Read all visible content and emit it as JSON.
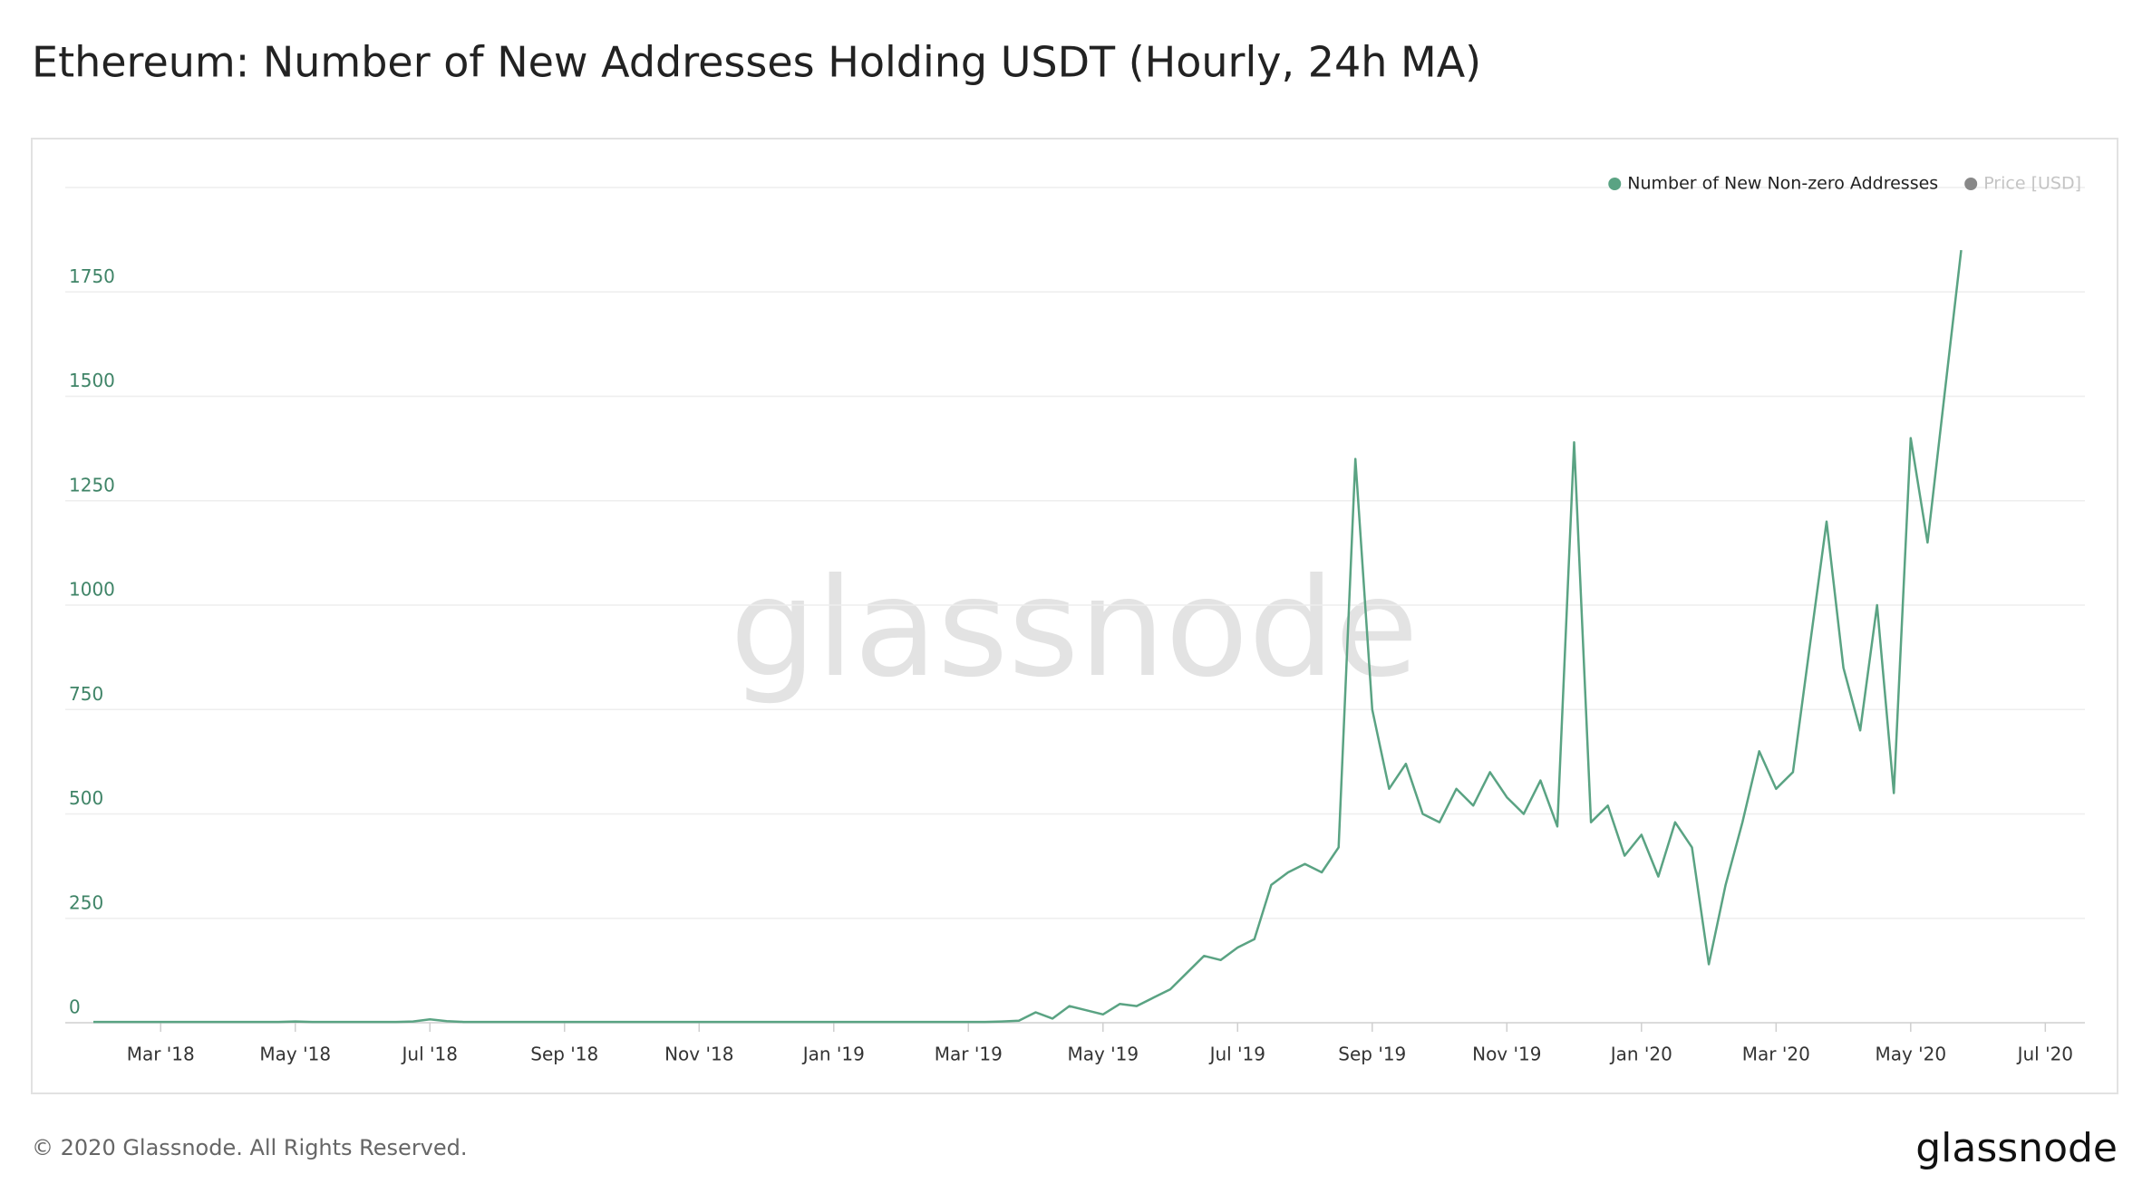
{
  "chart_data": {
    "type": "line",
    "title": "Ethereum: Number of New Addresses Holding USDT (Hourly, 24h MA)",
    "watermark": "glassnode",
    "footer": "© 2020 Glassnode. All Rights Reserved.",
    "logo": "glassnode",
    "categories": [
      null,
      null,
      null,
      null,
      "Mar '18",
      null,
      null,
      null,
      null,
      null,
      null,
      null,
      "May '18",
      null,
      null,
      null,
      null,
      null,
      null,
      null,
      "Jul '18",
      null,
      null,
      null,
      null,
      null,
      null,
      null,
      "Sep '18",
      null,
      null,
      null,
      null,
      null,
      null,
      null,
      "Nov '18",
      null,
      null,
      null,
      null,
      null,
      null,
      null,
      "Jan '19",
      null,
      null,
      null,
      null,
      null,
      null,
      null,
      "Mar '19",
      null,
      null,
      null,
      null,
      null,
      null,
      null,
      "May '19",
      null,
      null,
      null,
      null,
      null,
      null,
      null,
      "Jul '19",
      null,
      null,
      null,
      null,
      null,
      null,
      null,
      "Sep '19",
      null,
      null,
      null,
      null,
      null,
      null,
      null,
      "Nov '19",
      null,
      null,
      null,
      null,
      null,
      null,
      null,
      "Jan '20",
      null,
      null,
      null,
      null,
      null,
      null,
      null,
      "Mar '20",
      null,
      null,
      null,
      null,
      null,
      null,
      null,
      "May '20",
      null,
      null,
      null,
      null,
      null,
      null,
      null,
      "Jul '20",
      null,
      null,
      null
    ],
    "series": [
      {
        "name": "Number of New Non-zero Addresses",
        "color": "#5aa383",
        "values": [
          2,
          2,
          2,
          2,
          2,
          2,
          2,
          2,
          2,
          2,
          2,
          2,
          3,
          2,
          2,
          2,
          2,
          2,
          2,
          3,
          8,
          4,
          2,
          2,
          2,
          2,
          2,
          2,
          2,
          2,
          2,
          2,
          2,
          2,
          2,
          2,
          2,
          2,
          2,
          2,
          2,
          2,
          2,
          2,
          2,
          2,
          2,
          2,
          2,
          2,
          2,
          2,
          2,
          2,
          3,
          5,
          25,
          10,
          40,
          30,
          20,
          45,
          40,
          60,
          80,
          120,
          160,
          150,
          180,
          200,
          330,
          360,
          380,
          360,
          420,
          1350,
          750,
          560,
          620,
          500,
          480,
          560,
          520,
          600,
          540,
          500,
          580,
          470,
          1390,
          480,
          520,
          400,
          450,
          350,
          480,
          420,
          140,
          330,
          480,
          650,
          560,
          600,
          900,
          1200,
          850,
          700,
          1000,
          550,
          1400,
          1150,
          1500,
          1850,
          null,
          null,
          null,
          null,
          null,
          null,
          null,
          null
        ]
      }
    ],
    "hidden_series": [
      {
        "name": "Price [USD]",
        "color": "#888888"
      }
    ],
    "ylim": [
      0,
      2000
    ],
    "yticks": [
      0,
      250,
      500,
      750,
      1000,
      1250,
      1500,
      1750
    ],
    "grid": true
  }
}
